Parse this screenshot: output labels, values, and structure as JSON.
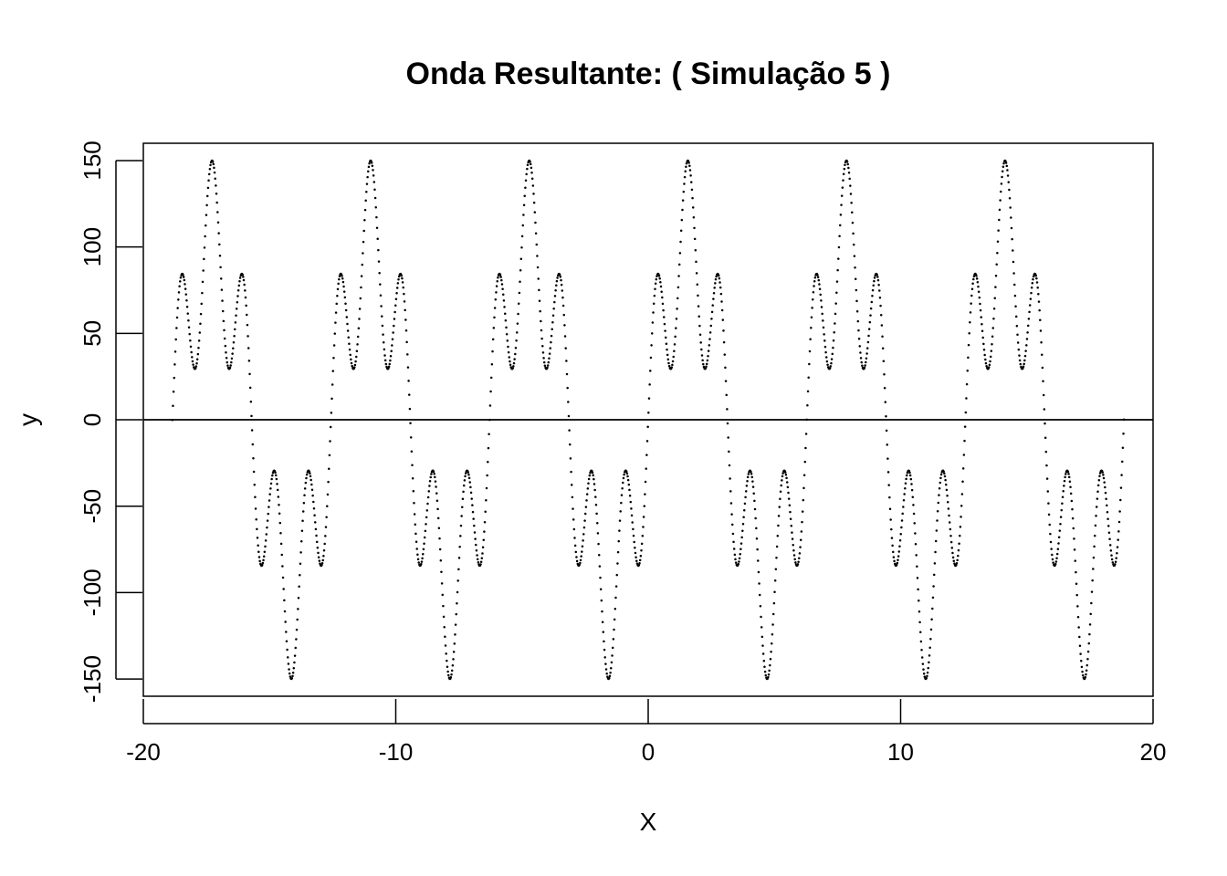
{
  "chart_data": {
    "type": "scatter",
    "title": "Onda Resultante: ( Simulação 5 )",
    "xlabel": "X",
    "ylabel": "y",
    "xlim": [
      -20,
      20
    ],
    "ylim": [
      -160,
      160
    ],
    "x_ticks": [
      -20,
      -10,
      0,
      10,
      20
    ],
    "y_ticks": [
      -150,
      -100,
      -50,
      0,
      50,
      100,
      150
    ],
    "x_tick_labels": [
      "-20",
      "-10",
      "0",
      "10",
      "20"
    ],
    "y_tick_labels": [
      "-150",
      "-100",
      "-50",
      "0",
      "50",
      "100",
      "150"
    ],
    "x_range": [
      -18.85,
      18.85
    ],
    "point_count": 1600,
    "function": "y = 100*sin(x) + 50*sin(5x)",
    "components": [
      {
        "amplitude": 100,
        "frequency": 1
      },
      {
        "amplitude": 50,
        "frequency": 5
      }
    ],
    "reference_line_y": 0,
    "grid": false,
    "legend": "none",
    "point_color": "#000000"
  }
}
